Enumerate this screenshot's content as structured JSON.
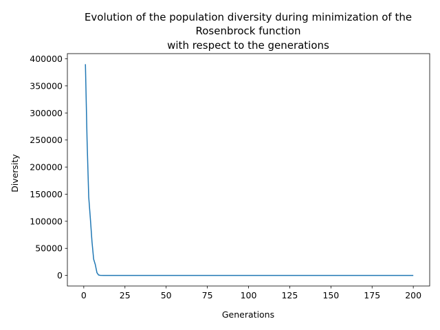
{
  "chart_data": {
    "type": "line",
    "title_lines": [
      "Evolution of the population diversity during minimization of the",
      "Rosenbrock function",
      "with respect to the generations"
    ],
    "xlabel": "Generations",
    "ylabel": "Diversity",
    "xlim": [
      -9.95,
      209.95
    ],
    "ylim": [
      -19500,
      409500
    ],
    "x_ticks": [
      0,
      25,
      50,
      75,
      100,
      125,
      150,
      175,
      200
    ],
    "y_ticks": [
      0,
      50000,
      100000,
      150000,
      200000,
      250000,
      300000,
      350000,
      400000
    ],
    "grid": false,
    "line_color": "#1f77b4",
    "series": [
      {
        "x": [
          1,
          2,
          3,
          4,
          5,
          6,
          7,
          8,
          9,
          10,
          12,
          15,
          20,
          50,
          100,
          150,
          200
        ],
        "y": [
          390000,
          250000,
          145000,
          105000,
          62000,
          30000,
          20000,
          5000,
          800,
          200,
          50,
          10,
          0,
          0,
          0,
          0,
          0
        ]
      }
    ]
  }
}
